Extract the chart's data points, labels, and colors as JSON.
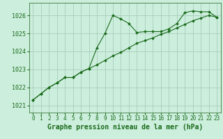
{
  "background_color": "#cceedd",
  "grid_color": "#aaccbb",
  "line_color": "#1a6b1a",
  "marker_color": "#1a6b1a",
  "xlabel": "Graphe pression niveau de la mer (hPa)",
  "xlabel_fontsize": 7,
  "tick_fontsize": 6,
  "ylabel_ticks": [
    1021,
    1022,
    1023,
    1024,
    1025,
    1026
  ],
  "xlim": [
    -0.5,
    23.5
  ],
  "ylim": [
    1020.6,
    1026.7
  ],
  "series1_x": [
    0,
    1,
    2,
    3,
    4,
    5,
    6,
    7,
    8,
    9,
    10,
    11,
    12,
    13,
    14,
    15,
    16,
    17,
    18,
    19,
    20,
    21,
    22,
    23
  ],
  "series1_y": [
    1021.3,
    1021.65,
    1022.0,
    1022.25,
    1022.55,
    1022.55,
    1022.85,
    1023.05,
    1023.25,
    1023.5,
    1023.75,
    1023.95,
    1024.2,
    1024.45,
    1024.6,
    1024.75,
    1024.95,
    1025.1,
    1025.3,
    1025.5,
    1025.7,
    1025.85,
    1026.0,
    1025.9
  ],
  "series2_x": [
    0,
    1,
    2,
    3,
    4,
    5,
    6,
    7,
    8,
    9,
    10,
    11,
    12,
    13,
    14,
    15,
    16,
    17,
    18,
    19,
    20,
    21,
    22,
    23
  ],
  "series2_y": [
    1021.3,
    1021.65,
    1022.0,
    1022.25,
    1022.55,
    1022.55,
    1022.85,
    1023.05,
    1024.2,
    1025.0,
    1026.0,
    1025.8,
    1025.55,
    1025.05,
    1025.1,
    1025.1,
    1025.1,
    1025.25,
    1025.55,
    1026.15,
    1026.25,
    1026.2,
    1026.2,
    1025.9
  ]
}
